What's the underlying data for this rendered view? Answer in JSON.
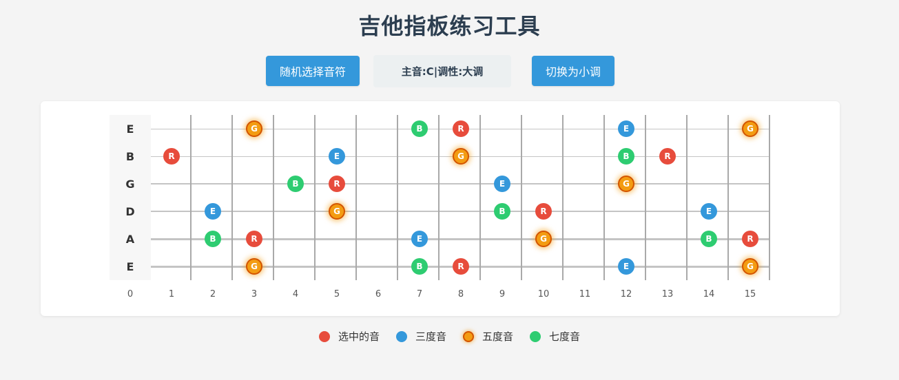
{
  "title": "吉他指板练习工具",
  "controls": {
    "random_button": "随机选择音符",
    "toggle_button": "切换为小调",
    "info": {
      "root_label": "主音:",
      "root_value": "C",
      "separator": "|",
      "key_label": "调性:",
      "key_value": "大调"
    }
  },
  "fretboard": {
    "strings": [
      "E",
      "B",
      "G",
      "D",
      "A",
      "E"
    ],
    "fret_numbers": [
      "0",
      "1",
      "2",
      "3",
      "4",
      "5",
      "6",
      "7",
      "8",
      "9",
      "10",
      "11",
      "12",
      "13",
      "14",
      "15"
    ],
    "notes": [
      {
        "string": 0,
        "fret": 3,
        "label": "G",
        "kind": "fifth"
      },
      {
        "string": 0,
        "fret": 7,
        "label": "B",
        "kind": "seventh"
      },
      {
        "string": 0,
        "fret": 8,
        "label": "R",
        "kind": "root"
      },
      {
        "string": 0,
        "fret": 12,
        "label": "E",
        "kind": "third"
      },
      {
        "string": 0,
        "fret": 15,
        "label": "G",
        "kind": "fifth"
      },
      {
        "string": 1,
        "fret": 1,
        "label": "R",
        "kind": "root"
      },
      {
        "string": 1,
        "fret": 5,
        "label": "E",
        "kind": "third"
      },
      {
        "string": 1,
        "fret": 8,
        "label": "G",
        "kind": "fifth"
      },
      {
        "string": 1,
        "fret": 12,
        "label": "B",
        "kind": "seventh"
      },
      {
        "string": 1,
        "fret": 13,
        "label": "R",
        "kind": "root"
      },
      {
        "string": 2,
        "fret": 4,
        "label": "B",
        "kind": "seventh"
      },
      {
        "string": 2,
        "fret": 5,
        "label": "R",
        "kind": "root"
      },
      {
        "string": 2,
        "fret": 9,
        "label": "E",
        "kind": "third"
      },
      {
        "string": 2,
        "fret": 12,
        "label": "G",
        "kind": "fifth"
      },
      {
        "string": 3,
        "fret": 2,
        "label": "E",
        "kind": "third"
      },
      {
        "string": 3,
        "fret": 5,
        "label": "G",
        "kind": "fifth"
      },
      {
        "string": 3,
        "fret": 9,
        "label": "B",
        "kind": "seventh"
      },
      {
        "string": 3,
        "fret": 10,
        "label": "R",
        "kind": "root"
      },
      {
        "string": 3,
        "fret": 14,
        "label": "E",
        "kind": "third"
      },
      {
        "string": 4,
        "fret": 2,
        "label": "B",
        "kind": "seventh"
      },
      {
        "string": 4,
        "fret": 3,
        "label": "R",
        "kind": "root"
      },
      {
        "string": 4,
        "fret": 7,
        "label": "E",
        "kind": "third"
      },
      {
        "string": 4,
        "fret": 10,
        "label": "G",
        "kind": "fifth"
      },
      {
        "string": 4,
        "fret": 14,
        "label": "B",
        "kind": "seventh"
      },
      {
        "string": 4,
        "fret": 15,
        "label": "R",
        "kind": "root"
      },
      {
        "string": 5,
        "fret": 3,
        "label": "G",
        "kind": "fifth"
      },
      {
        "string": 5,
        "fret": 7,
        "label": "B",
        "kind": "seventh"
      },
      {
        "string": 5,
        "fret": 8,
        "label": "R",
        "kind": "root"
      },
      {
        "string": 5,
        "fret": 12,
        "label": "E",
        "kind": "third"
      },
      {
        "string": 5,
        "fret": 15,
        "label": "G",
        "kind": "fifth"
      }
    ]
  },
  "legend": {
    "root": "选中的音",
    "third": "三度音",
    "fifth": "五度音",
    "seventh": "七度音"
  },
  "colors": {
    "root": "#e74c3c",
    "third": "#3498db",
    "fifth": "#f39c12",
    "seventh": "#2ecc71",
    "button": "#3498db"
  }
}
